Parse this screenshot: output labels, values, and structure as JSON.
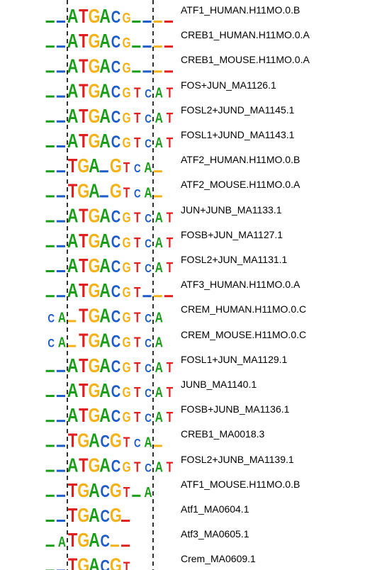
{
  "colors": {
    "A": "#1a9e1a",
    "C": "#1f5cc8",
    "G": "#f2b21a",
    "T": "#e02020",
    "guide": "#000000"
  },
  "motifs": [
    {
      "name": "ATF1_HUMAN.H11MO.0.B",
      "seq": "..ATGACG...."
    },
    {
      "name": "CREB1_HUMAN.H11MO.0.A",
      "seq": "..ATGACG...."
    },
    {
      "name": "CREB1_MOUSE.H11MO.0.A",
      "seq": "..ATGACG...."
    },
    {
      "name": "FOS+JUN_MA1126.1",
      "seq": "..ATGACGTCAT"
    },
    {
      "name": "FOSL2+JUND_MA1145.1",
      "seq": "..ATGACGTCAT"
    },
    {
      "name": "FOSL1+JUND_MA1143.1",
      "seq": "..ATGACGTCAT"
    },
    {
      "name": "ATF2_HUMAN.H11MO.0.B",
      "seq": "..TGA.GTCA."
    },
    {
      "name": "ATF2_MOUSE.H11MO.0.A",
      "seq": "..TGA.GTCA."
    },
    {
      "name": "JUN+JUNB_MA1133.1",
      "seq": "..ATGACGTCAT"
    },
    {
      "name": "FOSB+JUN_MA1127.1",
      "seq": "..ATGACGTCAT"
    },
    {
      "name": "FOSL2+JUN_MA1131.1",
      "seq": "..ATGACGTCAT"
    },
    {
      "name": "ATF3_HUMAN.H11MO.0.A",
      "seq": "..ATGACGT..."
    },
    {
      "name": "CREM_HUMAN.H11MO.0.C",
      "seq": "CA.TGACGTCA"
    },
    {
      "name": "CREM_MOUSE.H11MO.0.C",
      "seq": "CA.TGACGTCA"
    },
    {
      "name": "FOSL1+JUN_MA1129.1",
      "seq": "..ATGACGTCAT"
    },
    {
      "name": "JUNB_MA1140.1",
      "seq": "..ATGACGTCAT"
    },
    {
      "name": "FOSB+JUNB_MA1136.1",
      "seq": "..ATGACGTCAT"
    },
    {
      "name": "CREB1_MA0018.3",
      "seq": "..TGACGTCA."
    },
    {
      "name": "FOSL2+JUNB_MA1139.1",
      "seq": "..ATGACGTCAT"
    },
    {
      "name": "ATF1_MOUSE.H11MO.0.B",
      "seq": "..TGACGT.A"
    },
    {
      "name": "Atf1_MA0604.1",
      "seq": "..TGACG."
    },
    {
      "name": "Atf3_MA0605.1",
      "seq": ".ATGAC.."
    },
    {
      "name": "Crem_MA0609.1",
      "seq": "..TGACGT"
    }
  ]
}
